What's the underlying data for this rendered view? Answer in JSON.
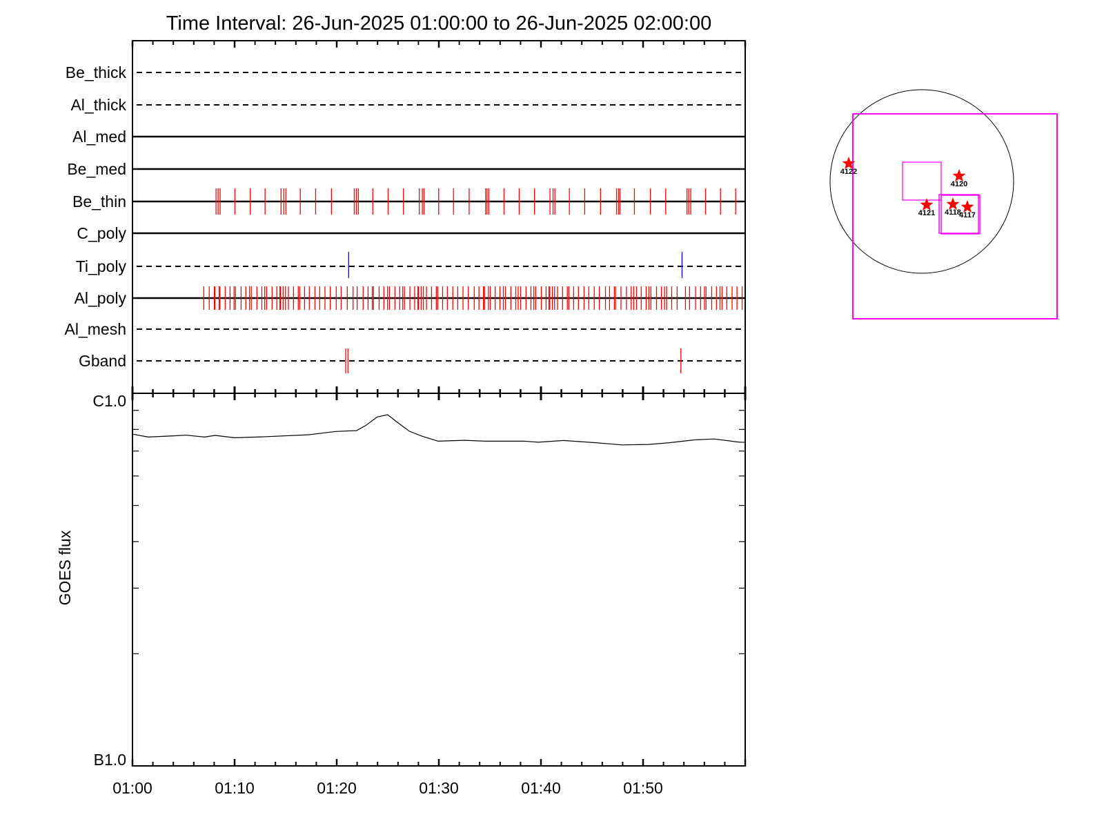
{
  "chart_data": [
    {
      "type": "event-timeline",
      "title": "Time Interval: 26-Jun-2025 01:00:00 to 26-Jun-2025 02:00:00",
      "xlim": [
        "01:00:00",
        "02:00:00"
      ],
      "x_tick_labels": [
        "01:00",
        "01:10",
        "01:20",
        "01:30",
        "01:40",
        "01:50"
      ],
      "colors": {
        "red_event": "#ff0000",
        "blue_event": "#0000ff",
        "axis": "#000000"
      },
      "rows": [
        {
          "name": "Be_thick",
          "line": "dashed",
          "events": []
        },
        {
          "name": "Al_thick",
          "line": "dashed",
          "events": []
        },
        {
          "name": "Al_med",
          "line": "solid",
          "events": []
        },
        {
          "name": "Be_med",
          "line": "solid",
          "events": []
        },
        {
          "name": "Be_thin",
          "line": "solid",
          "events": [
            {
              "color": "#ff0000",
              "times": [
                "01:08:11",
                "01:08:23",
                "01:08:35",
                "01:10:02",
                "01:11:32",
                "01:12:59",
                "01:14:33",
                "01:14:49",
                "01:15:01",
                "01:16:26",
                "01:17:56",
                "01:19:29",
                "01:21:43",
                "01:21:55",
                "01:22:07",
                "01:23:32",
                "01:25:02",
                "01:26:32",
                "01:28:05",
                "01:28:23",
                "01:28:33",
                "01:29:59",
                "01:31:26",
                "01:32:58",
                "01:34:35",
                "01:34:43",
                "01:34:53",
                "01:36:23",
                "01:37:52",
                "01:39:22",
                "01:40:53",
                "01:41:11",
                "01:41:22",
                "01:42:47",
                "01:44:17",
                "01:45:50",
                "01:47:24",
                "01:47:35",
                "01:47:44",
                "01:49:09",
                "01:50:43",
                "01:52:13",
                "01:54:18",
                "01:54:28",
                "01:54:40",
                "01:56:07",
                "01:57:35",
                "01:59:04"
              ]
            }
          ]
        },
        {
          "name": "C_poly",
          "line": "solid",
          "events": []
        },
        {
          "name": "Ti_poly",
          "line": "dashed",
          "events": [
            {
              "color": "#0000ff",
              "times": [
                "01:21:10",
                "01:53:49"
              ]
            }
          ]
        },
        {
          "name": "Al_poly",
          "line": "solid",
          "events": [
            {
              "color": "#ff0000",
              "times": [
                "01:06:59",
                "01:07:31",
                "01:08:01",
                "01:08:05",
                "01:08:29",
                "01:08:34",
                "01:09:05",
                "01:09:33",
                "01:09:57",
                "01:10:05",
                "01:10:38",
                "01:11:06",
                "01:11:28",
                "01:11:38",
                "01:12:11",
                "01:12:40",
                "01:12:57",
                "01:13:08",
                "01:13:40",
                "01:14:08",
                "01:14:26",
                "01:14:30",
                "01:14:45",
                "01:14:59",
                "01:15:16",
                "01:15:46",
                "01:16:14",
                "01:16:22",
                "01:16:51",
                "01:17:19",
                "01:17:52",
                "01:18:20",
                "01:18:51",
                "01:19:22",
                "01:19:57",
                "01:20:26",
                "01:21:02",
                "01:21:36",
                "01:22:00",
                "01:22:35",
                "01:23:04",
                "01:23:29",
                "01:23:36",
                "01:24:09",
                "01:24:37",
                "01:24:59",
                "01:25:10",
                "01:25:42",
                "01:26:10",
                "01:26:28",
                "01:26:38",
                "01:27:10",
                "01:27:38",
                "01:27:57",
                "01:28:01",
                "01:28:16",
                "01:28:29",
                "01:28:47",
                "01:29:17",
                "01:29:45",
                "01:29:53",
                "01:30:22",
                "01:30:50",
                "01:31:22",
                "01:31:51",
                "01:32:22",
                "01:32:53",
                "01:33:28",
                "01:33:56",
                "01:34:22",
                "01:34:28",
                "01:34:51",
                "01:35:02",
                "01:35:31",
                "01:35:59",
                "01:36:19",
                "01:36:31",
                "01:37:03",
                "01:37:32",
                "01:37:46",
                "01:38:00",
                "01:38:32",
                "01:39:01",
                "01:39:18",
                "01:39:29",
                "01:40:02",
                "01:40:30",
                "01:40:47",
                "01:40:52",
                "01:41:07",
                "01:41:20",
                "01:41:37",
                "01:42:07",
                "01:42:35",
                "01:42:44",
                "01:43:12",
                "01:43:40",
                "01:44:13",
                "01:44:41",
                "01:45:13",
                "01:45:43",
                "01:46:19",
                "01:46:43",
                "01:47:11",
                "01:47:18",
                "01:47:50",
                "01:48:22",
                "01:48:50",
                "01:49:05",
                "01:49:21",
                "01:49:49",
                "01:50:18",
                "01:50:34",
                "01:50:46",
                "01:51:19",
                "01:51:48",
                "01:52:06",
                "01:52:18",
                "01:52:48",
                "01:53:20",
                "01:54:09",
                "01:54:33",
                "01:55:08",
                "01:55:38",
                "01:56:01",
                "01:56:10",
                "01:56:43",
                "01:57:11",
                "01:57:32",
                "01:57:44",
                "01:58:12",
                "01:58:43",
                "01:59:12",
                "01:59:42"
              ]
            }
          ]
        },
        {
          "name": "Al_mesh",
          "line": "dashed",
          "events": []
        },
        {
          "name": "Gband",
          "line": "dashed",
          "events": [
            {
              "color": "#ff0000",
              "times": [
                "01:20:53",
                "01:21:06",
                "01:53:42"
              ]
            }
          ]
        }
      ]
    },
    {
      "type": "line",
      "ylabel": "GOES flux",
      "yscale": "log",
      "ylim": [
        1e-07,
        1e-06
      ],
      "y_tick_labels": [
        "C1.0",
        "B1.0"
      ],
      "xlim": [
        "01:00:00",
        "02:00:00"
      ],
      "x_tick_labels": [
        "01:00",
        "01:10",
        "01:20",
        "01:30",
        "01:40",
        "01:50"
      ],
      "line_color": "#000000",
      "series": [
        {
          "points": [
            [
              "01:00:00",
              7.77e-07
            ],
            [
              "01:01:33",
              7.63e-07
            ],
            [
              "01:03:42",
              7.68e-07
            ],
            [
              "01:05:16",
              7.72e-07
            ],
            [
              "01:07:04",
              7.63e-07
            ],
            [
              "01:08:05",
              7.71e-07
            ],
            [
              "01:10:00",
              7.6e-07
            ],
            [
              "01:12:42",
              7.64e-07
            ],
            [
              "01:17:13",
              7.74e-07
            ],
            [
              "01:19:55",
              7.9e-07
            ],
            [
              "01:21:56",
              7.94e-07
            ],
            [
              "01:22:50",
              8.19e-07
            ],
            [
              "01:23:58",
              8.64e-07
            ],
            [
              "01:24:59",
              8.76e-07
            ],
            [
              "01:25:46",
              8.43e-07
            ],
            [
              "01:27:07",
              7.91e-07
            ],
            [
              "01:28:14",
              7.69e-07
            ],
            [
              "01:29:56",
              7.44e-07
            ],
            [
              "01:32:31",
              7.48e-07
            ],
            [
              "01:34:33",
              7.44e-07
            ],
            [
              "01:38:23",
              7.44e-07
            ],
            [
              "01:39:44",
              7.39e-07
            ],
            [
              "01:42:13",
              7.47e-07
            ],
            [
              "01:45:22",
              7.37e-07
            ],
            [
              "01:47:57",
              7.27e-07
            ],
            [
              "01:50:32",
              7.29e-07
            ],
            [
              "01:52:34",
              7.37e-07
            ],
            [
              "01:55:03",
              7.5e-07
            ],
            [
              "01:56:58",
              7.54e-07
            ],
            [
              "01:59:19",
              7.4e-07
            ],
            [
              "02:00:00",
              7.38e-07
            ]
          ]
        }
      ]
    },
    {
      "type": "solar-map",
      "colors": {
        "limb": "#000000",
        "fov_box": "#ff00ff",
        "region_marker": "#ff0000"
      },
      "active_regions": [
        "4122",
        "4120",
        "4121",
        "4118",
        "4117"
      ]
    }
  ]
}
